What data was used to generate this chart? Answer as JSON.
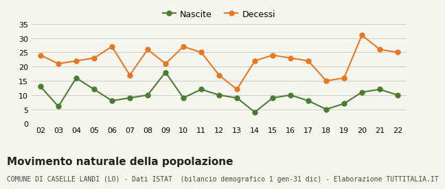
{
  "years": [
    "02",
    "03",
    "04",
    "05",
    "06",
    "07",
    "08",
    "09",
    "10",
    "11",
    "12",
    "13",
    "14",
    "15",
    "16",
    "17",
    "18",
    "19",
    "20",
    "21",
    "22"
  ],
  "nascite": [
    13,
    6,
    16,
    12,
    8,
    9,
    10,
    18,
    9,
    12,
    10,
    9,
    4,
    9,
    10,
    8,
    5,
    7,
    11,
    12,
    10
  ],
  "decessi": [
    24,
    21,
    22,
    23,
    27,
    17,
    26,
    21,
    27,
    25,
    17,
    12,
    22,
    24,
    23,
    22,
    15,
    16,
    31,
    26,
    25
  ],
  "nascite_color": "#4a7c2f",
  "decessi_color": "#e87722",
  "background_color": "#f5f5f0",
  "grid_color": "#cccccc",
  "ylim": [
    0,
    35
  ],
  "yticks": [
    0,
    5,
    10,
    15,
    20,
    25,
    30,
    35
  ],
  "title": "Movimento naturale della popolazione",
  "subtitle": "COMUNE DI CASELLE LANDI (LO) - Dati ISTAT  (bilancio demografico 1 gen-31 dic) - Elaborazione TUTTITALIA.IT",
  "legend_nascite": "Nascite",
  "legend_decessi": "Decessi",
  "title_fontsize": 11,
  "subtitle_fontsize": 7,
  "tick_fontsize": 8,
  "legend_fontsize": 9,
  "marker_size": 5,
  "line_width": 1.5
}
